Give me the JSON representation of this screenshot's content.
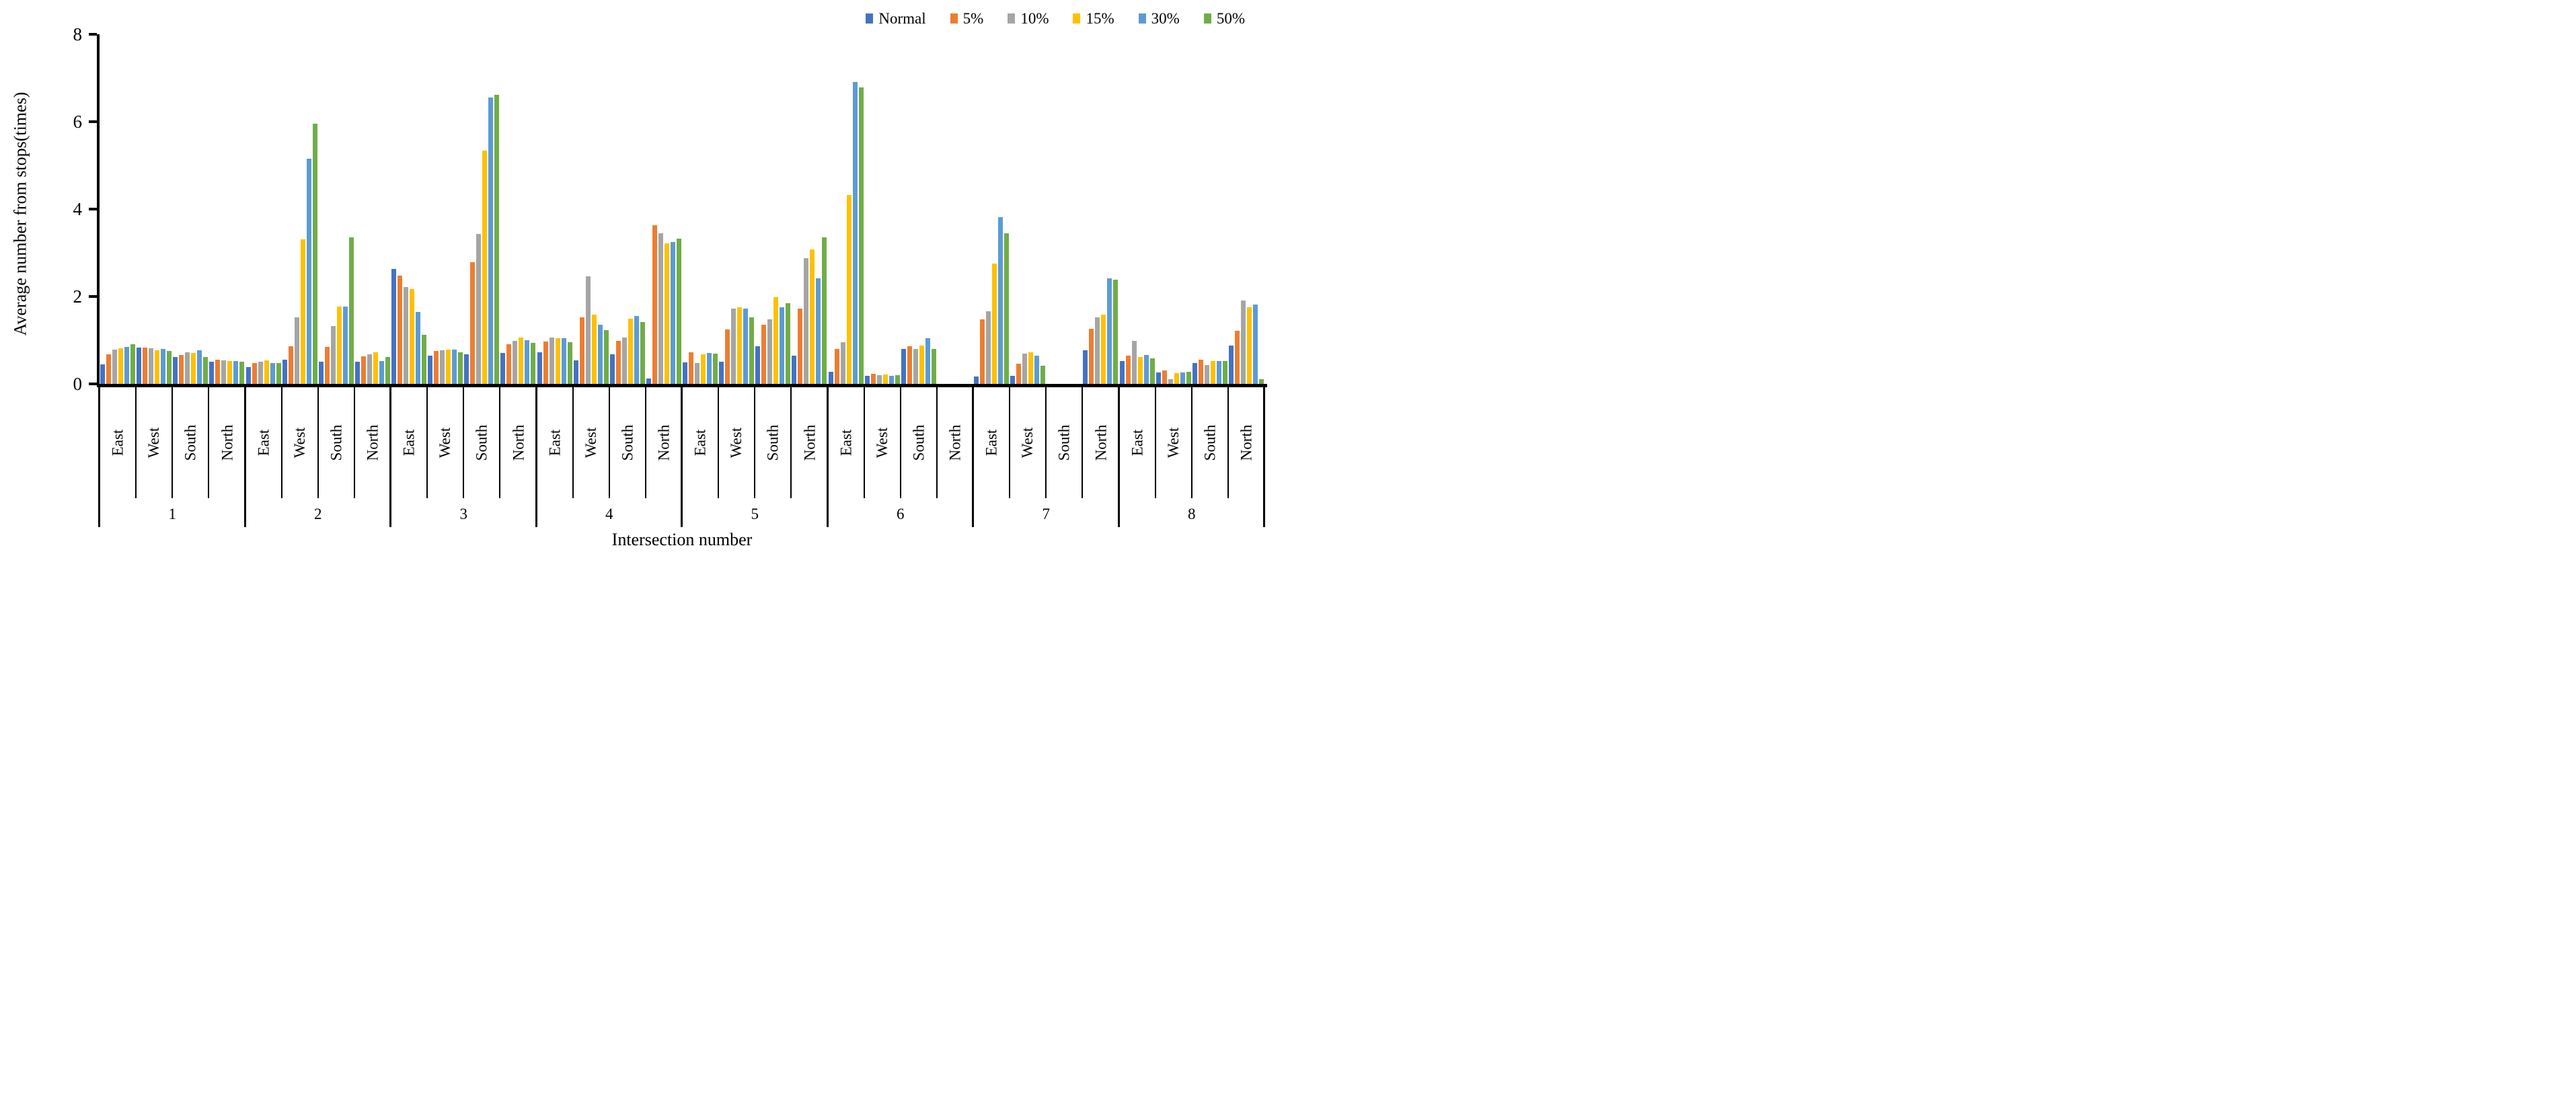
{
  "y_axis": {
    "title": "Average number from stops(times)",
    "ticks": [
      "0",
      "2",
      "4",
      "6",
      "8"
    ],
    "tick_values": [
      0,
      2,
      4,
      6,
      8
    ]
  },
  "x_axis": {
    "title": "Intersection number"
  },
  "legend": {
    "items": [
      {
        "name": "Normal",
        "color": "#4472C4"
      },
      {
        "name": "5%",
        "color": "#ED7D31"
      },
      {
        "name": "10%",
        "color": "#A5A5A5"
      },
      {
        "name": "15%",
        "color": "#FFC000"
      },
      {
        "name": "30%",
        "color": "#5B9BD5"
      },
      {
        "name": "50%",
        "color": "#70AD47"
      }
    ]
  },
  "chart_data": {
    "type": "bar",
    "title": "",
    "xlabel": "Intersection number",
    "ylabel": "Average number from stops(times)",
    "ylim": [
      0,
      8
    ],
    "grid": false,
    "legend_position": "top-right",
    "series_names": [
      "Normal",
      "5%",
      "10%",
      "15%",
      "30%",
      "50%"
    ],
    "series_colors": [
      "#4472C4",
      "#ED7D31",
      "#A5A5A5",
      "#FFC000",
      "#5B9BD5",
      "#70AD47"
    ],
    "groups": [
      {
        "label": "1",
        "directions": [
          {
            "label": "East",
            "values": [
              0.45,
              0.67,
              0.78,
              0.82,
              0.84,
              0.91
            ]
          },
          {
            "label": "West",
            "values": [
              0.83,
              0.83,
              0.81,
              0.77,
              0.8,
              0.75
            ]
          },
          {
            "label": "South",
            "values": [
              0.61,
              0.66,
              0.72,
              0.7,
              0.77,
              0.62
            ]
          },
          {
            "label": "North",
            "values": [
              0.5,
              0.56,
              0.54,
              0.52,
              0.53,
              0.51
            ]
          }
        ]
      },
      {
        "label": "2",
        "directions": [
          {
            "label": "East",
            "values": [
              0.39,
              0.47,
              0.51,
              0.54,
              0.47,
              0.48
            ]
          },
          {
            "label": "West",
            "values": [
              0.55,
              0.86,
              1.53,
              3.3,
              5.15,
              5.96
            ]
          },
          {
            "label": "South",
            "values": [
              0.5,
              0.84,
              1.33,
              1.77,
              1.77,
              3.36
            ]
          },
          {
            "label": "North",
            "values": [
              0.51,
              0.63,
              0.67,
              0.73,
              0.52,
              0.61
            ]
          }
        ]
      },
      {
        "label": "3",
        "directions": [
          {
            "label": "East",
            "values": [
              2.63,
              2.48,
              2.21,
              2.17,
              1.65,
              1.13
            ]
          },
          {
            "label": "West",
            "values": [
              0.64,
              0.75,
              0.77,
              0.78,
              0.78,
              0.72
            ]
          },
          {
            "label": "South",
            "values": [
              0.67,
              2.79,
              3.43,
              5.34,
              6.56,
              6.61
            ]
          },
          {
            "label": "North",
            "values": [
              0.71,
              0.91,
              0.98,
              1.06,
              1.0,
              0.94
            ]
          }
        ]
      },
      {
        "label": "4",
        "directions": [
          {
            "label": "East",
            "values": [
              0.73,
              0.97,
              1.06,
              1.05,
              1.05,
              0.96
            ]
          },
          {
            "label": "West",
            "values": [
              0.54,
              1.52,
              2.46,
              1.59,
              1.35,
              1.23
            ]
          },
          {
            "label": "South",
            "values": [
              0.67,
              0.98,
              1.06,
              1.49,
              1.55,
              1.41
            ]
          },
          {
            "label": "North",
            "values": [
              0.13,
              3.63,
              3.45,
              3.21,
              3.25,
              3.33
            ]
          }
        ]
      },
      {
        "label": "5",
        "directions": [
          {
            "label": "East",
            "values": [
              0.49,
              0.73,
              0.48,
              0.67,
              0.7,
              0.69
            ]
          },
          {
            "label": "West",
            "values": [
              0.5,
              1.24,
              1.73,
              1.75,
              1.72,
              1.52
            ]
          },
          {
            "label": "South",
            "values": [
              0.86,
              1.36,
              1.47,
              1.98,
              1.75,
              1.85
            ]
          },
          {
            "label": "North",
            "values": [
              0.65,
              1.73,
              2.88,
              3.08,
              2.41,
              3.36
            ]
          }
        ]
      },
      {
        "label": "6",
        "directions": [
          {
            "label": "East",
            "values": [
              0.27,
              0.8,
              0.95,
              4.32,
              6.9,
              6.79
            ]
          },
          {
            "label": "West",
            "values": [
              0.19,
              0.23,
              0.2,
              0.22,
              0.19,
              0.2
            ]
          },
          {
            "label": "South",
            "values": [
              0.8,
              0.86,
              0.8,
              0.87,
              1.05,
              0.8
            ]
          },
          {
            "label": "North",
            "values": [
              0,
              0,
              0,
              0,
              0,
              0
            ]
          }
        ]
      },
      {
        "label": "7",
        "directions": [
          {
            "label": "East",
            "values": [
              0.17,
              1.48,
              1.66,
              2.75,
              3.81,
              3.44
            ]
          },
          {
            "label": "West",
            "values": [
              0.19,
              0.46,
              0.69,
              0.73,
              0.64,
              0.42
            ]
          },
          {
            "label": "South",
            "values": [
              0,
              0,
              0,
              0,
              0,
              0
            ]
          },
          {
            "label": "North",
            "values": [
              0.77,
              1.26,
              1.53,
              1.58,
              2.42,
              2.39
            ]
          }
        ]
      },
      {
        "label": "8",
        "directions": [
          {
            "label": "East",
            "values": [
              0.52,
              0.64,
              0.99,
              0.61,
              0.66,
              0.59
            ]
          },
          {
            "label": "West",
            "values": [
              0.26,
              0.3,
              0.11,
              0.24,
              0.26,
              0.27
            ]
          },
          {
            "label": "South",
            "values": [
              0.47,
              0.55,
              0.43,
              0.52,
              0.52,
              0.52
            ]
          },
          {
            "label": "North",
            "values": [
              0.87,
              1.22,
              1.9,
              1.76,
              1.81,
              0.11
            ]
          }
        ]
      }
    ]
  }
}
